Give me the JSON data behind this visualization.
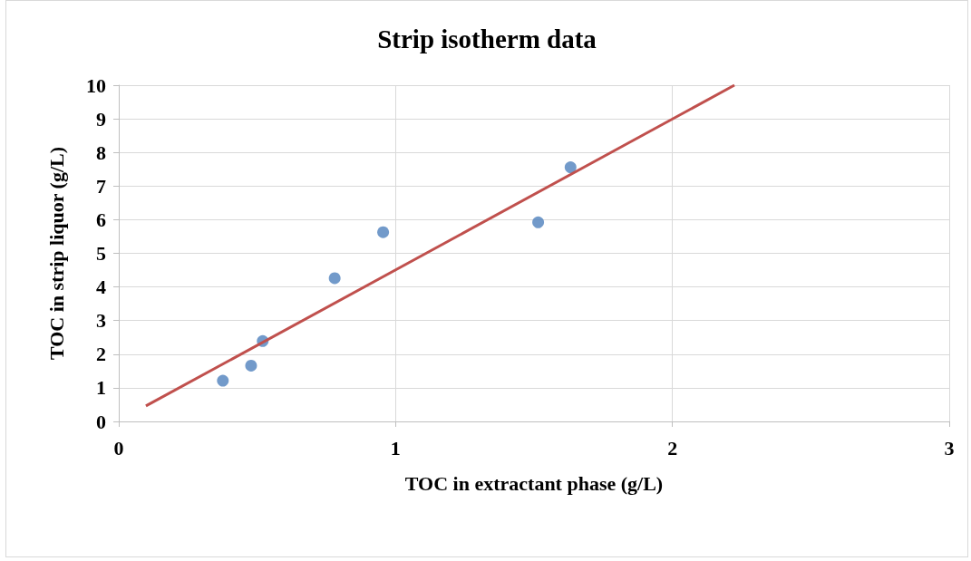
{
  "chart_data": {
    "type": "scatter",
    "title": "Strip isotherm data",
    "xlabel": "TOC in extractant phase (g/L)",
    "ylabel": "TOC in strip liquor (g/L)",
    "series": [
      {
        "color": "#4f81bd",
        "x": [
          0.376,
          0.478,
          0.52,
          0.78,
          0.955,
          1.515,
          1.632
        ],
        "values": [
          1.21,
          1.66,
          2.39,
          4.26,
          5.63,
          5.92,
          7.56
        ]
      },
      {
        "type": "line",
        "color": "#c0504d",
        "x": [
          0.098,
          2.224
        ],
        "values": [
          0.46,
          10.0
        ],
        "marker": "none"
      }
    ],
    "xlim": [
      0,
      3
    ],
    "xticks": [
      0,
      1,
      2,
      3
    ],
    "ylim": [
      0,
      10
    ],
    "yticks": [
      0,
      1,
      2,
      3,
      4,
      5,
      6,
      7,
      8,
      9,
      10
    ],
    "grid": true,
    "marker": "circle"
  }
}
